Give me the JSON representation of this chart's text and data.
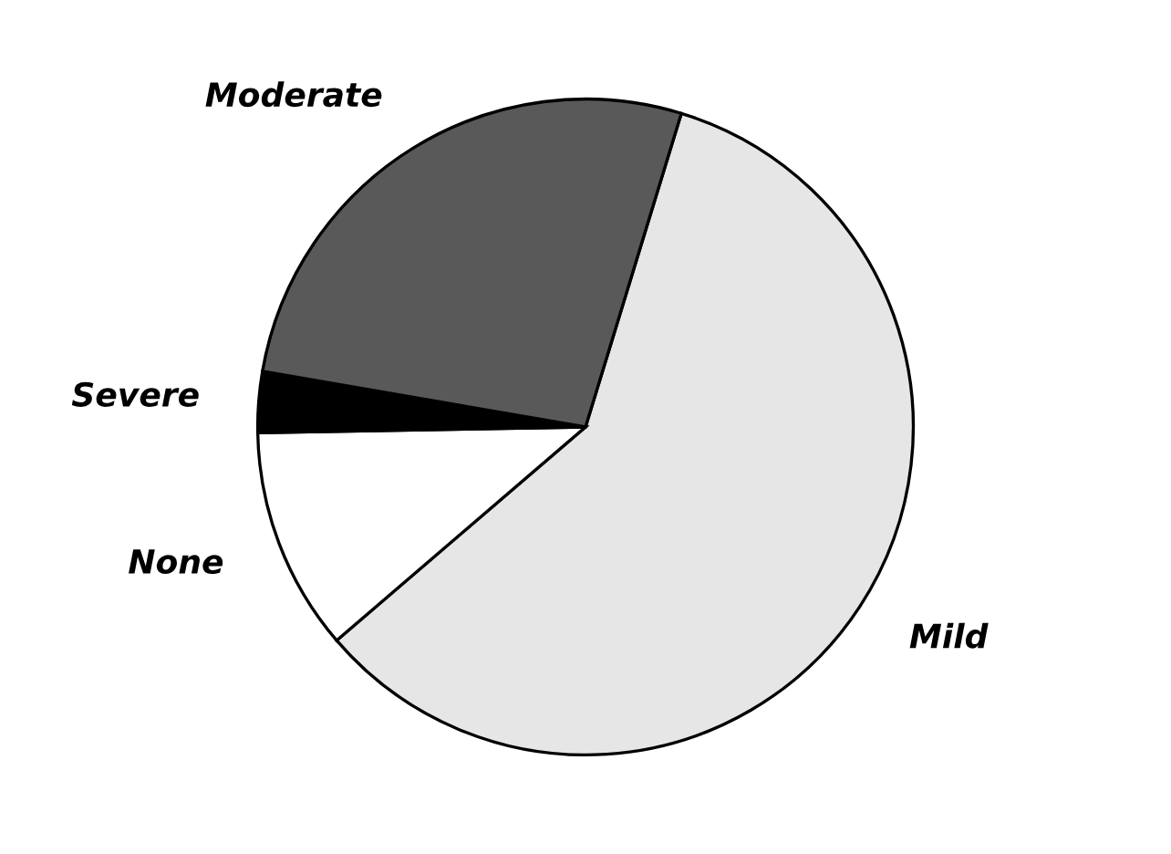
{
  "chart_data": {
    "type": "pie",
    "categories": [
      "Mild",
      "None",
      "Severe",
      "Moderate"
    ],
    "values": [
      59,
      11,
      3,
      27
    ],
    "colors": [
      "#e6e6e6",
      "#ffffff",
      "#000000",
      "#595959"
    ]
  }
}
